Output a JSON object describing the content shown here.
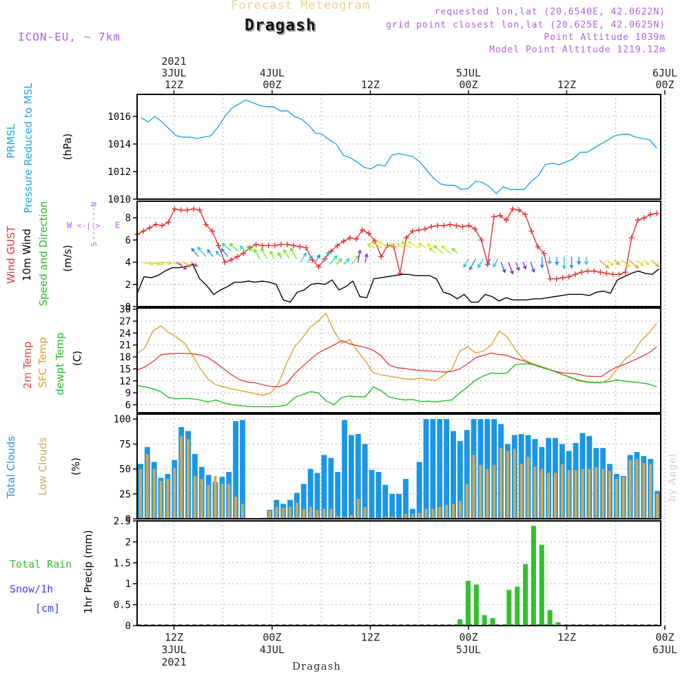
{
  "header": {
    "subtitle": "Forecast Meteogram",
    "title": "Dragash",
    "model": "ICON-EU, ~ 7km",
    "requested": "requested lon,lat (20.6540E, 42.0622N)",
    "gridpoint": "grid point closest lon,lat (20.625E, 42.0625N)",
    "point_alt": "Point Altitude 1039m",
    "model_alt": "Model Point Altitude 1219.12m",
    "credit": "by Angel",
    "bottom_title": "Dragash"
  },
  "colors": {
    "pressure": "#1aa7e8",
    "gust": "#e83030",
    "wind": "#000000",
    "t2m": "#e84040",
    "sfc": "#e0a020",
    "dew": "#20c020",
    "total_clouds": "#1a96e6",
    "low_clouds": "#d4aa50",
    "rain": "#30c030",
    "snow": "#4040e0",
    "label_purple": "#b060e0"
  },
  "chart_data": [
    {
      "type": "line",
      "panel": "pressure",
      "ylabel_left": [
        "PRMSL",
        "Pressure Reduced to MSL"
      ],
      "ylabel_units": "(hPa)",
      "yticks": [
        1010,
        1012,
        1014,
        1016
      ],
      "ylim": [
        1010,
        1017.6
      ],
      "x_hours_from": 7,
      "x_hours_to": 71,
      "series": [
        {
          "name": "PRMSL",
          "values": [
            1015.9,
            1015.6,
            1016.0,
            1015.6,
            1015.1,
            1014.6,
            1014.5,
            1014.5,
            1014.4,
            1014.5,
            1014.6,
            1015.2,
            1016.0,
            1016.6,
            1016.9,
            1017.2,
            1017.0,
            1016.8,
            1016.7,
            1016.7,
            1016.4,
            1016.4,
            1016.0,
            1015.8,
            1015.4,
            1014.8,
            1014.7,
            1014.3,
            1014.0,
            1013.2,
            1013.0,
            1012.7,
            1012.3,
            1012.2,
            1012.5,
            1012.4,
            1013.2,
            1013.3,
            1013.2,
            1013.1,
            1012.7,
            1012.1,
            1011.5,
            1011.1,
            1011.0,
            1011.0,
            1010.7,
            1010.8,
            1011.3,
            1011.2,
            1010.9,
            1010.4,
            1010.9,
            1010.7,
            1010.7,
            1010.7,
            1011.3,
            1011.7,
            1012.5,
            1012.6,
            1012.5,
            1012.7,
            1012.9,
            1013.4,
            1013.4,
            1013.7,
            1014.0,
            1014.3,
            1014.6,
            1014.7,
            1014.7,
            1014.5,
            1014.4,
            1014.3,
            1013.7
          ]
        }
      ]
    },
    {
      "type": "line",
      "panel": "wind",
      "ylabel_left": [
        "Wind GUST",
        "10m Wind",
        "Speed and Direction"
      ],
      "ylabel_units": "(m/s)",
      "compass": {
        "n": "N",
        "s": "S",
        "w": "W",
        "e": "E"
      },
      "yticks": [
        0,
        2,
        4,
        6,
        8
      ],
      "ylim": [
        0,
        9.5
      ],
      "series": [
        {
          "name": "Wind GUST",
          "values": [
            6.5,
            6.8,
            7.1,
            7.4,
            7.3,
            7.6,
            8.8,
            8.7,
            8.7,
            8.8,
            8.7,
            7.4,
            6.8,
            5.5,
            4.0,
            4.2,
            4.5,
            4.8,
            5.3,
            5.6,
            5.5,
            5.5,
            5.5,
            5.6,
            5.6,
            5.5,
            5.4,
            5.3,
            4.2,
            3.6,
            4.3,
            5.0,
            5.5,
            5.9,
            6.2,
            6.1,
            6.9,
            6.6,
            5.9,
            4.5,
            5.5,
            5.4,
            3.0,
            6.2,
            6.8,
            6.9,
            7.0,
            7.2,
            7.3,
            7.3,
            7.4,
            7.3,
            7.2,
            7.3,
            7.0,
            6.0,
            3.8,
            8.1,
            8.2,
            7.8,
            8.8,
            8.7,
            8.3,
            6.8,
            5.4,
            4.8,
            2.5,
            2.5,
            2.6,
            2.7,
            2.9,
            3.1,
            3.2,
            3.2,
            3.1,
            3.0,
            2.9,
            2.9,
            3.1,
            6.2,
            7.8,
            8.0,
            8.3,
            8.4
          ]
        },
        {
          "name": "10m Wind",
          "values": [
            1.2,
            2.7,
            2.6,
            2.8,
            3.2,
            3.5,
            3.5,
            3.6,
            3.8,
            2.5,
            1.9,
            1.1,
            1.5,
            1.8,
            2.2,
            2.2,
            2.3,
            2.2,
            2.3,
            2.2,
            2.0,
            0.6,
            0.4,
            1.3,
            1.5,
            2.0,
            2.1,
            2.0,
            2.4,
            1.5,
            1.8,
            2.3,
            0.9,
            0.8,
            2.5,
            2.6,
            2.7,
            2.8,
            2.9,
            2.9,
            2.8,
            2.8,
            2.8,
            2.5,
            1.3,
            1.1,
            0.7,
            1.1,
            0.4,
            0.4,
            1.1,
            0.9,
            0.5,
            0.8,
            0.6,
            0.6,
            0.6,
            0.7,
            0.7,
            0.8,
            0.9,
            1.0,
            1.1,
            1.1,
            1.1,
            1.0,
            1.3,
            1.4,
            1.2,
            2.4,
            2.7,
            3.0,
            3.2,
            3.0,
            2.9,
            3.4
          ]
        }
      ]
    },
    {
      "type": "line",
      "panel": "temperature",
      "ylabel_left": [
        "2m Temp",
        "SFC Temp",
        "dewpt Temp"
      ],
      "ylabel_units": "(C)",
      "yticks": [
        6,
        9,
        12,
        15,
        18,
        21,
        24,
        27,
        30
      ],
      "ylim": [
        4,
        30.3
      ],
      "series": [
        {
          "name": "2m Temp",
          "values": [
            14.7,
            15.5,
            16.8,
            18.5,
            18.8,
            18.9,
            18.9,
            18.8,
            18.5,
            17.9,
            16.5,
            15.0,
            13.5,
            12.3,
            11.7,
            11.5,
            11.0,
            10.6,
            10.5,
            11.3,
            13.8,
            15.6,
            17.4,
            19.0,
            20.0,
            21.0,
            22.1,
            21.3,
            20.8,
            20.4,
            19.7,
            18.3,
            16.0,
            15.3,
            15.1,
            14.8,
            14.6,
            14.5,
            14.4,
            14.2,
            14.4,
            15.0,
            16.3,
            17.8,
            18.4,
            19.0,
            18.6,
            18.4,
            17.6,
            17.1,
            16.3,
            15.6,
            15.0,
            14.5,
            14.0,
            13.9,
            13.7,
            13.2,
            13.1,
            13.1,
            14.5,
            15.5,
            16.2,
            17.1,
            18.0,
            19.0,
            20.5
          ]
        },
        {
          "name": "SFC Temp",
          "values": [
            18.9,
            20.3,
            24.5,
            25.8,
            24.2,
            23.0,
            21.5,
            18.5,
            15.2,
            12.5,
            11.0,
            10.5,
            10.0,
            9.6,
            9.2,
            8.8,
            8.4,
            9.0,
            11.5,
            16.5,
            20.5,
            22.8,
            25.5,
            27.0,
            29.0,
            24.5,
            21.5,
            22.3,
            19.5,
            17.0,
            14.0,
            13.5,
            13.2,
            12.8,
            12.5,
            12.4,
            12.7,
            12.3,
            12.1,
            13.5,
            15.0,
            19.5,
            20.5,
            19.0,
            19.5,
            21.0,
            24.5,
            23.0,
            20.0,
            17.5,
            16.5,
            15.8,
            15.2,
            14.4,
            13.6,
            13.0,
            12.0,
            11.7,
            11.5,
            11.5,
            12.5,
            15.0,
            17.5,
            19.0,
            22.0,
            24.0,
            26.5
          ]
        },
        {
          "name": "dewpt Temp",
          "values": [
            10.8,
            10.5,
            10.0,
            9.3,
            7.8,
            7.5,
            7.6,
            7.5,
            7.2,
            6.7,
            7.2,
            6.5,
            6.0,
            5.8,
            5.6,
            5.5,
            5.5,
            5.5,
            5.6,
            5.9,
            7.8,
            8.5,
            9.3,
            9.0,
            7.0,
            6.0,
            7.8,
            8.2,
            8.0,
            8.0,
            10.5,
            9.5,
            8.0,
            7.5,
            7.2,
            7.3,
            6.8,
            6.9,
            6.7,
            7.0,
            7.2,
            9.0,
            10.5,
            12.2,
            13.2,
            14.0,
            13.8,
            14.0,
            16.0,
            16.3,
            16.2,
            15.8,
            15.0,
            14.4,
            13.6,
            12.8,
            12.3,
            11.8,
            11.6,
            11.6,
            11.8,
            12.2,
            11.9,
            11.7,
            11.5,
            11.2,
            10.5
          ]
        }
      ]
    },
    {
      "type": "bar",
      "panel": "clouds",
      "ylabel_left": [
        "Total Clouds",
        "Low Clouds"
      ],
      "ylabel_units": "(%)",
      "yticks": [
        0,
        25,
        50,
        75,
        100
      ],
      "ylim": [
        0,
        105
      ],
      "series": [
        {
          "name": "Total Clouds",
          "values": [
            55,
            72,
            57,
            41,
            45,
            59,
            92,
            88,
            65,
            52,
            44,
            37,
            42,
            47,
            98,
            99,
            0,
            0,
            1,
            9,
            19,
            15,
            19,
            26,
            35,
            50,
            46,
            64,
            61,
            47,
            99,
            84,
            85,
            75,
            49,
            47,
            34,
            25,
            25,
            40,
            10,
            57,
            100,
            100,
            100,
            100,
            88,
            78,
            89,
            100,
            100,
            100,
            100,
            95,
            75,
            84,
            85,
            84,
            80,
            72,
            81,
            81,
            75,
            68,
            76,
            86,
            83,
            71,
            71,
            55,
            45,
            43,
            64,
            67,
            63,
            60,
            28
          ]
        },
        {
          "name": "Low Clouds",
          "values": [
            50,
            65,
            50,
            38,
            40,
            51,
            83,
            80,
            43,
            40,
            34,
            43,
            35,
            35,
            22,
            15,
            0,
            0,
            1,
            8,
            12,
            11,
            12,
            16,
            10,
            12,
            9,
            10,
            10,
            3,
            2,
            4,
            20,
            12,
            1,
            1,
            2,
            2,
            1,
            5,
            5,
            6,
            10,
            10,
            12,
            14,
            15,
            18,
            35,
            64,
            54,
            50,
            54,
            71,
            68,
            70,
            55,
            62,
            52,
            50,
            46,
            46,
            55,
            49,
            49,
            50,
            50,
            52,
            50,
            48,
            40,
            42,
            59,
            60,
            56,
            55,
            25
          ]
        }
      ]
    },
    {
      "type": "bar",
      "panel": "precipitation",
      "ylabel_left": [
        "Total Rain",
        "Snow/1h",
        "[cm]"
      ],
      "ylabel_units": "1hr Precip (mm)",
      "yticks": [
        0,
        0.5,
        1,
        1.5,
        2,
        2.5
      ],
      "ylim": [
        0,
        2.5
      ],
      "series": [
        {
          "name": "Total Rain",
          "x_hours": [
            47,
            48,
            49,
            50,
            51,
            53,
            54,
            55,
            56,
            57,
            58,
            59,
            60
          ],
          "values": [
            0.15,
            1.07,
            0.98,
            0.25,
            0.18,
            0.85,
            0.93,
            1.47,
            2.38,
            1.93,
            0.37,
            0.08,
            0
          ]
        },
        {
          "name": "Snow/1h",
          "x_hours": [],
          "values": []
        }
      ]
    }
  ],
  "x_axis": {
    "top_ticks": [
      {
        "hour": 12,
        "lines": [
          "2021",
          "3JUL",
          "12Z"
        ]
      },
      {
        "hour": 24,
        "lines": [
          "4JUL",
          "00Z"
        ]
      },
      {
        "hour": 36,
        "lines": [
          "12Z"
        ]
      },
      {
        "hour": 48,
        "lines": [
          "5JUL",
          "00Z"
        ]
      },
      {
        "hour": 60,
        "lines": [
          "12Z"
        ]
      },
      {
        "hour": 72,
        "lines": [
          "6JUL",
          "00Z"
        ]
      }
    ],
    "bottom_ticks": [
      {
        "hour": 12,
        "lines": [
          "12Z",
          "3JUL",
          "2021"
        ]
      },
      {
        "hour": 24,
        "lines": [
          "00Z",
          "4JUL"
        ]
      },
      {
        "hour": 36,
        "lines": [
          "12Z"
        ]
      },
      {
        "hour": 48,
        "lines": [
          "00Z",
          "5JUL"
        ]
      },
      {
        "hour": 60,
        "lines": [
          "12Z"
        ]
      },
      {
        "hour": 72,
        "lines": [
          "00Z",
          "6JUL"
        ]
      }
    ]
  }
}
